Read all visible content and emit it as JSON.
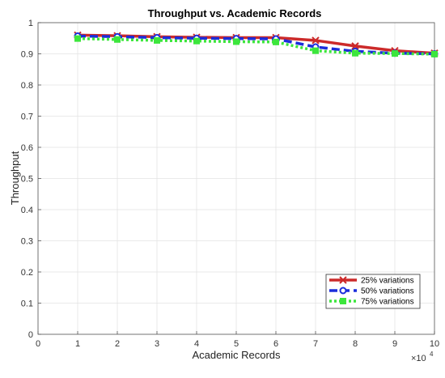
{
  "chart_data": {
    "type": "line",
    "title": "Throughput vs. Academic Records",
    "xlabel": "Academic Records",
    "ylabel": "Throughput",
    "x_multiplier": "×10",
    "x_multiplier_exp": "4",
    "x": [
      1,
      2,
      3,
      4,
      5,
      6,
      7,
      8,
      9,
      10
    ],
    "xlim": [
      0,
      10
    ],
    "ylim": [
      0,
      1
    ],
    "xticks": [
      0,
      1,
      2,
      3,
      4,
      5,
      6,
      7,
      8,
      9,
      10
    ],
    "yticks": [
      0,
      0.1,
      0.2,
      0.3,
      0.4,
      0.5,
      0.6,
      0.7,
      0.8,
      0.9,
      1
    ],
    "xtick_labels": [
      "0",
      "1",
      "2",
      "3",
      "4",
      "5",
      "6",
      "7",
      "8",
      "9",
      "10"
    ],
    "ytick_labels": [
      "0",
      "0.1",
      "0.2",
      "0.3",
      "0.4",
      "0.5",
      "0.6",
      "0.7",
      "0.8",
      "0.9",
      "1"
    ],
    "grid": true,
    "legend_position": "bottom-right",
    "series": [
      {
        "name": "25% variations",
        "values": [
          0.96,
          0.958,
          0.955,
          0.953,
          0.952,
          0.952,
          0.943,
          0.925,
          0.91,
          0.902
        ],
        "color": "#cc2a2a",
        "marker": "x",
        "dash": "solid"
      },
      {
        "name": "50% variations",
        "values": [
          0.957,
          0.955,
          0.952,
          0.95,
          0.949,
          0.948,
          0.922,
          0.908,
          0.902,
          0.9
        ],
        "color": "#1b2ddb",
        "marker": "circle",
        "dash": "dashed"
      },
      {
        "name": "75% variations",
        "values": [
          0.949,
          0.946,
          0.943,
          0.941,
          0.939,
          0.938,
          0.91,
          0.902,
          0.901,
          0.899
        ],
        "color": "#3ce63c",
        "marker": "square",
        "dash": "dotted"
      }
    ]
  }
}
